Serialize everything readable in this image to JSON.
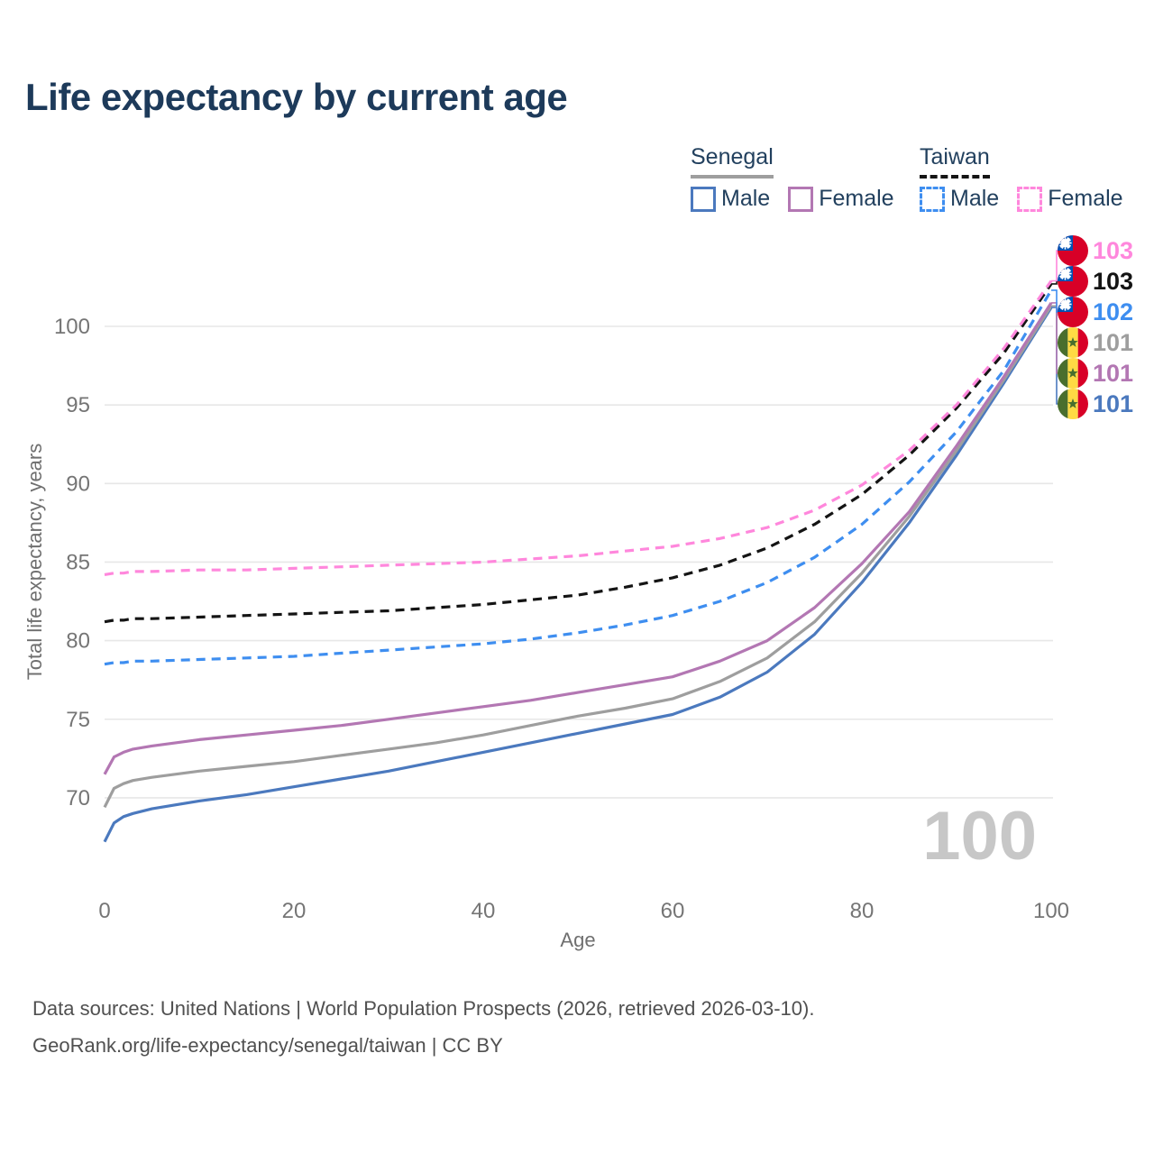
{
  "title": "Life expectancy by current age",
  "legend": {
    "groups": [
      {
        "label": "Senegal",
        "line_style": "solid",
        "underline_color": "#9e9e9e",
        "items": [
          {
            "label": "Male",
            "color": "#4b79be"
          },
          {
            "label": "Female",
            "color": "#b377b3"
          }
        ]
      },
      {
        "label": "Taiwan",
        "line_style": "dashed",
        "underline_color": "#141414",
        "items": [
          {
            "label": "Male",
            "color": "#3e8ef0"
          },
          {
            "label": "Female",
            "color": "#ff87dc"
          }
        ]
      }
    ]
  },
  "chart_data": {
    "type": "line",
    "title": "Life expectancy by current age",
    "xlabel": "Age",
    "ylabel": "Total life expectancy, years",
    "xticks": [
      0,
      20,
      40,
      60,
      80,
      100
    ],
    "yticks": [
      70,
      75,
      80,
      85,
      90,
      95,
      100
    ],
    "xlim": [
      0,
      100
    ],
    "ylim": [
      65,
      104
    ],
    "grid": "horizontal",
    "legend_position": "top-right",
    "age_counter": "100",
    "x": [
      0,
      1,
      2,
      3,
      5,
      10,
      15,
      20,
      25,
      30,
      35,
      40,
      45,
      50,
      55,
      60,
      65,
      70,
      75,
      80,
      85,
      90,
      95,
      100
    ],
    "series": [
      {
        "name": "Senegal Male",
        "country": "Senegal",
        "sex": "Male",
        "color": "#4b79be",
        "dash": "solid",
        "flag": "senegal",
        "end_label": "101",
        "callout_row": 5,
        "values": [
          67.2,
          68.4,
          68.8,
          69.0,
          69.3,
          69.8,
          70.2,
          70.7,
          71.2,
          71.7,
          72.3,
          72.9,
          73.5,
          74.1,
          74.7,
          75.3,
          76.4,
          78.0,
          80.4,
          83.7,
          87.5,
          91.8,
          96.4,
          101.2
        ]
      },
      {
        "name": "Senegal Both sexes",
        "country": "Senegal",
        "sex": "Both sexes",
        "color": "#9e9e9e",
        "dash": "solid",
        "flag": "senegal",
        "end_label": "101",
        "callout_row": 3,
        "values": [
          69.4,
          70.6,
          70.9,
          71.1,
          71.3,
          71.7,
          72.0,
          72.3,
          72.7,
          73.1,
          73.5,
          74.0,
          74.6,
          75.2,
          75.7,
          76.3,
          77.4,
          78.9,
          81.2,
          84.3,
          87.9,
          92.1,
          96.6,
          101.3
        ]
      },
      {
        "name": "Senegal Female",
        "country": "Senegal",
        "sex": "Female",
        "color": "#b377b3",
        "dash": "solid",
        "flag": "senegal",
        "end_label": "101",
        "callout_row": 4,
        "values": [
          71.5,
          72.6,
          72.9,
          73.1,
          73.3,
          73.7,
          74.0,
          74.3,
          74.6,
          75.0,
          75.4,
          75.8,
          76.2,
          76.7,
          77.2,
          77.7,
          78.7,
          80.0,
          82.1,
          84.9,
          88.2,
          92.4,
          96.8,
          101.5
        ]
      },
      {
        "name": "Taiwan Male",
        "country": "Taiwan",
        "sex": "Male",
        "color": "#3e8ef0",
        "dash": "dashed",
        "flag": "taiwan",
        "end_label": "102",
        "callout_row": 2,
        "values": [
          78.5,
          78.6,
          78.6,
          78.7,
          78.7,
          78.8,
          78.9,
          79.0,
          79.2,
          79.4,
          79.6,
          79.8,
          80.1,
          80.5,
          81.0,
          81.6,
          82.5,
          83.7,
          85.3,
          87.4,
          90.1,
          93.3,
          97.2,
          102.3
        ]
      },
      {
        "name": "Taiwan Both sexes",
        "country": "Taiwan",
        "sex": "Both sexes",
        "color": "#141414",
        "dash": "dashed",
        "flag": "taiwan",
        "end_label": "103",
        "callout_row": 1,
        "values": [
          81.2,
          81.3,
          81.3,
          81.4,
          81.4,
          81.5,
          81.6,
          81.7,
          81.8,
          81.9,
          82.1,
          82.3,
          82.6,
          82.9,
          83.4,
          84.0,
          84.8,
          85.9,
          87.4,
          89.3,
          91.8,
          94.8,
          98.3,
          102.7
        ]
      },
      {
        "name": "Taiwan Female",
        "country": "Taiwan",
        "sex": "Female",
        "color": "#ff87dc",
        "dash": "dashed",
        "flag": "taiwan",
        "end_label": "103",
        "callout_row": 0,
        "values": [
          84.2,
          84.3,
          84.3,
          84.4,
          84.4,
          84.5,
          84.5,
          84.6,
          84.7,
          84.8,
          84.9,
          85.0,
          85.2,
          85.4,
          85.7,
          86.0,
          86.5,
          87.2,
          88.3,
          89.9,
          92.1,
          95.0,
          98.6,
          102.9
        ]
      }
    ]
  },
  "colors": {
    "title_navy": "#1d3a5a",
    "tick_gray": "#757575",
    "gridline": "#e7e7e7",
    "watermark_gray": "#c7c7c7",
    "footer_gray": "#505050",
    "flag_red": "#d80027",
    "flag_blue": "#0052b4",
    "flag_green": "#496e2d",
    "flag_yellow": "#ffda44"
  },
  "footer": {
    "line1": "Data sources: United Nations | World Population Prospects (2026, retrieved 2026-03-10).",
    "line2": "GeoRank.org/life-expectancy/senegal/taiwan | CC BY"
  }
}
